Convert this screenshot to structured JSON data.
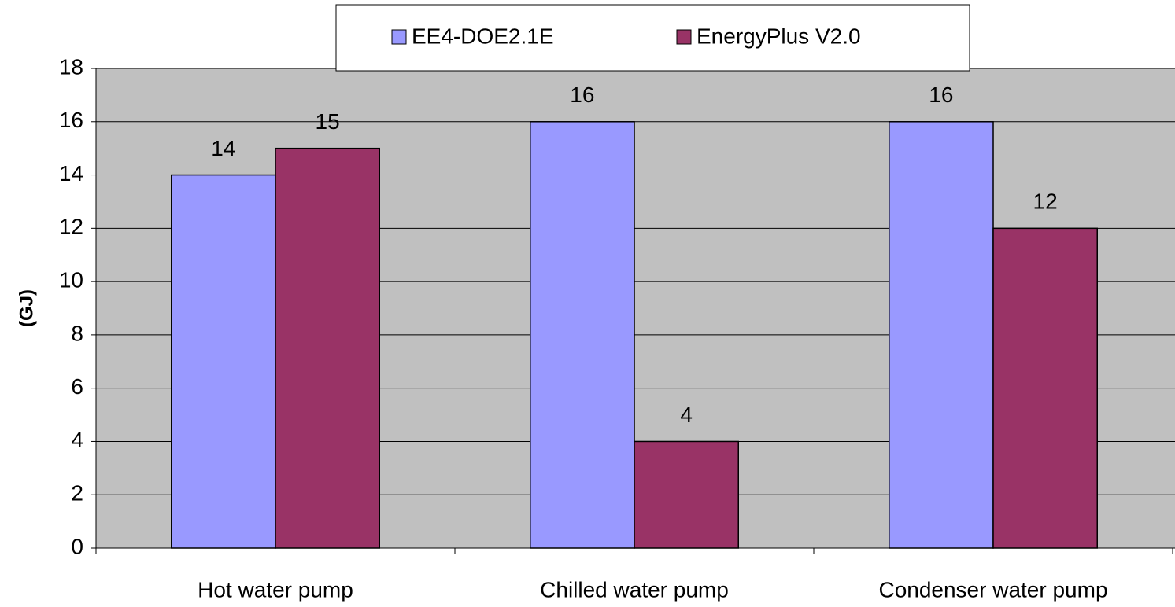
{
  "chart_data": {
    "type": "bar",
    "y_label": "(GJ)",
    "categories": [
      "Hot water pump",
      "Chilled water pump",
      "Condenser water pump"
    ],
    "series": [
      {
        "name": "EE4-DOE2.1E",
        "color": "#9999ff",
        "values": [
          14,
          16,
          16
        ]
      },
      {
        "name": "EnergyPlus V2.0",
        "color": "#993366",
        "values": [
          15,
          4,
          12
        ]
      }
    ],
    "ylim": [
      0,
      18
    ],
    "yticks": [
      0,
      2,
      4,
      6,
      8,
      10,
      12,
      14,
      16,
      18
    ],
    "grid": true,
    "plot_background": "#c0c0c0",
    "legend": "top"
  }
}
